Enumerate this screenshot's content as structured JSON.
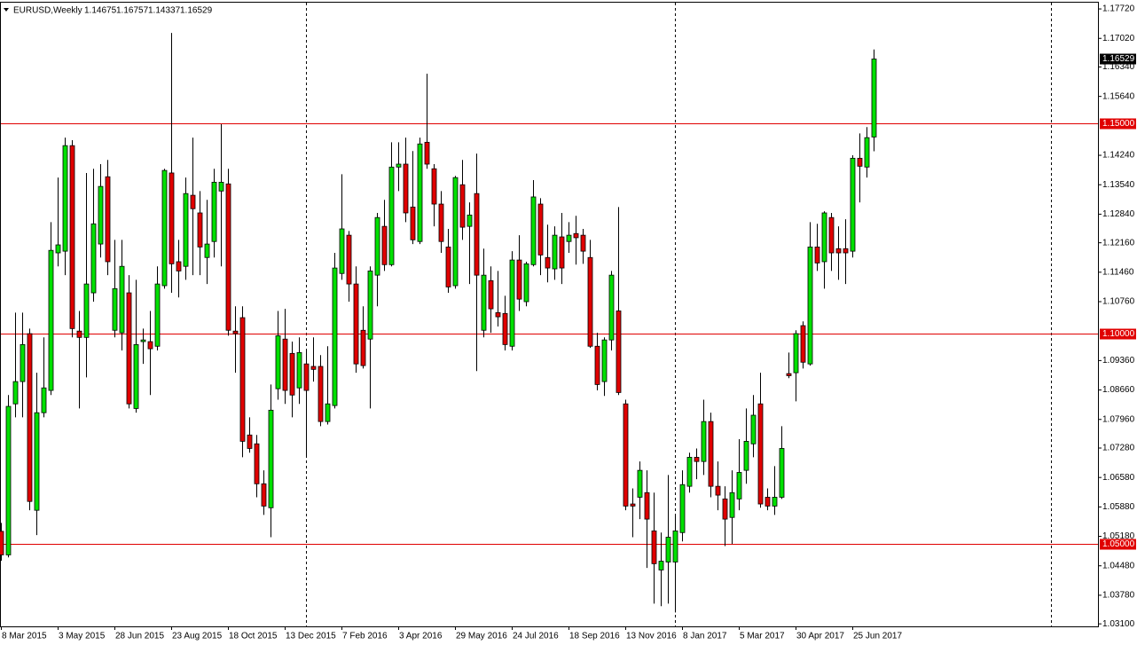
{
  "chart_data": {
    "type": "candlestick",
    "symbol": "EURUSD,Weekly",
    "up_color": "#00e000",
    "down_color": "#e00000",
    "wick_color": "#000000",
    "categories": [
      "8 Mar 2015",
      null,
      null,
      null,
      null,
      null,
      null,
      null,
      "3 May 2015",
      null,
      null,
      null,
      null,
      null,
      null,
      null,
      "28 Jun 2015",
      null,
      null,
      null,
      null,
      null,
      null,
      null,
      "23 Aug 2015",
      null,
      null,
      null,
      null,
      null,
      null,
      null,
      "18 Oct 2015",
      null,
      null,
      null,
      null,
      null,
      null,
      null,
      "13 Dec 2015",
      null,
      null,
      null,
      null,
      null,
      null,
      null,
      "7 Feb 2016",
      null,
      null,
      null,
      null,
      null,
      null,
      null,
      "3 Apr 2016",
      null,
      null,
      null,
      null,
      null,
      null,
      null,
      "29 May 2016",
      null,
      null,
      null,
      null,
      null,
      null,
      null,
      "24 Jul 2016",
      null,
      null,
      null,
      null,
      null,
      null,
      null,
      "18 Sep 2016",
      null,
      null,
      null,
      null,
      null,
      null,
      null,
      "13 Nov 2016",
      null,
      null,
      null,
      null,
      null,
      null,
      null,
      "8 Jan 2017",
      null,
      null,
      null,
      null,
      null,
      null,
      null,
      "5 Mar 2017",
      null,
      null,
      null,
      null,
      null,
      null,
      null,
      "30 Apr 2017",
      null,
      null,
      null,
      null,
      null,
      null,
      null,
      "25 Jun 2017",
      null,
      null,
      null
    ],
    "open": [
      1.053,
      1.0474,
      1.0833,
      1.0886,
      1.1,
      1.058,
      1.0812,
      1.0865,
      1.1192,
      1.1196,
      1.1447,
      1.1006,
      1.0991,
      1.1097,
      1.1213,
      1.1373,
      1.1008,
      1.1002,
      1.1097,
      1.0822,
      1.0981,
      1.0981,
      1.097,
      1.1114,
      1.1382,
      1.1171,
      1.116,
      1.1329,
      1.1287,
      1.1181,
      1.1219,
      1.1339,
      1.1356,
      1.1006,
      1.1038,
      1.0759,
      1.0738,
      1.0643,
      1.0586,
      1.0869,
      1.0987,
      1.0953,
      1.0871,
      1.0928,
      1.0922,
      1.0922,
      1.0791,
      1.0829,
      1.1143,
      1.1234,
      1.1118,
      1.1008,
      1.0987,
      1.1139,
      1.1255,
      1.1164,
      1.1396,
      1.1403,
      1.1301,
      1.1219,
      1.1455,
      1.1392,
      1.1308,
      1.1206,
      1.1114,
      1.1354,
      1.1255,
      1.1333,
      1.1008,
      1.1126,
      1.105,
      1.1048,
      1.097,
      1.1175,
      1.1076,
      1.1164,
      1.1308,
      1.1181,
      1.1154,
      1.123,
      1.1219,
      1.1238,
      1.1234,
      1.1181,
      1.097,
      1.0886,
      1.0985,
      1.1054,
      1.0833,
      1.0595,
      1.0611,
      1.0622,
      1.0531,
      1.0438,
      1.0457,
      1.0457,
      1.0527,
      1.0637,
      1.0706,
      1.0696,
      1.0791,
      1.0637,
      1.0607,
      1.0563,
      1.0607,
      1.0675,
      1.0738,
      1.0833,
      1.0611,
      1.059,
      1.0611,
      1.0905,
      1.0907,
      1.1019,
      1.0928,
      1.1206,
      1.1171,
      1.1276,
      1.1202,
      1.1202,
      1.1196,
      1.1417,
      1.1396,
      1.14675
    ],
    "high": [
      1.055,
      1.0854,
      1.105,
      1.105,
      1.1012,
      1.0907,
      1.0991,
      1.1265,
      1.1371,
      1.1466,
      1.146,
      1.1054,
      1.1382,
      1.1392,
      1.1403,
      1.1413,
      1.1223,
      1.1223,
      1.1139,
      1.1128,
      1.1012,
      1.1054,
      1.116,
      1.1392,
      1.1715,
      1.1223,
      1.1371,
      1.1466,
      1.1339,
      1.1318,
      1.1392,
      1.1498,
      1.1392,
      1.1065,
      1.1065,
      1.0801,
      1.0759,
      1.0675,
      1.0879,
      1.1054,
      1.1059,
      1.0981,
      1.0991,
      1.096,
      1.0991,
      1.0949,
      1.097,
      1.1192,
      1.1379,
      1.1244,
      1.116,
      1.1065,
      1.116,
      1.1287,
      1.1318,
      1.1455,
      1.1455,
      1.1466,
      1.1434,
      1.1466,
      1.1618,
      1.1403,
      1.1339,
      1.1249,
      1.1375,
      1.1413,
      1.1312,
      1.1428,
      1.1202,
      1.116,
      1.1149,
      1.109,
      1.1196,
      1.1234,
      1.1171,
      1.1365,
      1.1322,
      1.1259,
      1.1255,
      1.1287,
      1.1265,
      1.128,
      1.1249,
      1.1223,
      1.1002,
      1.0991,
      1.1149,
      1.1301,
      1.0843,
      1.0632,
      1.0696,
      1.0675,
      1.0622,
      1.0527,
      1.0664,
      1.0569,
      1.0675,
      1.0717,
      1.0727,
      1.0843,
      1.0812,
      1.0696,
      1.0637,
      1.0675,
      1.0749,
      1.0822,
      1.0854,
      1.0907,
      1.0632,
      1.0685,
      1.078,
      1.0955,
      1.1008,
      1.1029,
      1.1265,
      1.1261,
      1.1291,
      1.1287,
      1.1255,
      1.1272,
      1.1424,
      1.1476,
      1.1491,
      1.16757
    ],
    "low": [
      1.046,
      1.0468,
      1.0801,
      1.0801,
      1.058,
      1.0521,
      1.0801,
      1.0854,
      1.116,
      1.1139,
      1.0991,
      1.0822,
      1.0896,
      1.1076,
      1.1181,
      1.1139,
      1.0991,
      1.096,
      1.0822,
      1.0812,
      1.0928,
      1.0854,
      1.096,
      1.1107,
      1.1097,
      1.1086,
      1.1128,
      1.1139,
      1.1139,
      1.1118,
      1.1181,
      1.116,
      1.0995,
      1.0907,
      1.0706,
      1.0717,
      1.0611,
      1.0569,
      1.0516,
      1.0843,
      1.0833,
      1.0801,
      1.0833,
      1.0706,
      1.0886,
      1.078,
      1.0784,
      1.0822,
      1.1128,
      1.1076,
      1.0907,
      1.0917,
      1.0822,
      1.1065,
      1.1149,
      1.116,
      1.1339,
      1.1265,
      1.1213,
      1.1213,
      1.1392,
      1.1255,
      1.1192,
      1.1097,
      1.1107,
      1.1223,
      1.1118,
      1.0911,
      1.0991,
      1.1002,
      1.1017,
      1.096,
      1.096,
      1.1054,
      1.1065,
      1.116,
      1.1139,
      1.1122,
      1.1128,
      1.1118,
      1.1192,
      1.1164,
      1.1166,
      1.0966,
      1.0865,
      1.0852,
      1.096,
      1.0854,
      1.058,
      1.0516,
      1.0559,
      1.0443,
      1.0358,
      1.0352,
      1.0358,
      1.0337,
      1.0506,
      1.0622,
      1.0654,
      1.0664,
      1.0611,
      1.058,
      1.0495,
      1.05,
      1.058,
      1.0643,
      1.0706,
      1.0586,
      1.058,
      1.0569,
      1.0607,
      1.0894,
      1.0839,
      1.0917,
      1.0924,
      1.1149,
      1.1107,
      1.1149,
      1.1128,
      1.1118,
      1.1181,
      1.1312,
      1.1371,
      1.14337
    ],
    "close": [
      1.0474,
      1.0827,
      1.0886,
      1.0974,
      1.0601,
      1.0812,
      1.0871,
      1.1198,
      1.1211,
      1.1447,
      1.1012,
      1.0991,
      1.1118,
      1.1261,
      1.135,
      1.1171,
      1.1107,
      1.116,
      1.0833,
      1.0974,
      1.0985,
      1.0964,
      1.1118,
      1.1388,
      1.1166,
      1.1149,
      1.1333,
      1.1297,
      1.1206,
      1.1213,
      1.136,
      1.136,
      1.1008,
      1.1,
      1.0744,
      1.0727,
      1.0643,
      1.059,
      1.0818,
      1.0995,
      1.0865,
      1.0854,
      1.0955,
      1.0865,
      1.0915,
      1.0791,
      1.0833,
      1.1156,
      1.1249,
      1.1118,
      1.0928,
      1.0924,
      1.1149,
      1.1276,
      1.1164,
      1.1396,
      1.1403,
      1.1287,
      1.1223,
      1.1451,
      1.1403,
      1.1308,
      1.1219,
      1.1111,
      1.1371,
      1.1253,
      1.1282,
      1.1139,
      1.1139,
      1.1059,
      1.104,
      1.0974,
      1.1175,
      1.1082,
      1.1166,
      1.1325,
      1.1187,
      1.1156,
      1.1234,
      1.1156,
      1.1234,
      1.1228,
      1.1196,
      1.097,
      1.0879,
      1.0985,
      1.1139,
      1.086,
      1.059,
      1.059,
      1.0675,
      1.0559,
      1.0453,
      1.0459,
      1.0516,
      1.0531,
      1.0641,
      1.0706,
      1.0696,
      1.0791,
      1.0637,
      1.0616,
      1.0559,
      1.0622,
      1.067,
      1.0744,
      1.0806,
      1.0595,
      1.059,
      1.0611,
      1.0727,
      1.09,
      1.1,
      1.0932,
      1.1206,
      1.1168,
      1.1287,
      1.1192,
      1.1192,
      1.1192,
      1.1417,
      1.1398,
      1.1466,
      1.16529
    ],
    "ylim": [
      1.0304,
      1.1789
    ],
    "yticks": [
      {
        "value": 1.1772,
        "label": "1.17720"
      },
      {
        "value": 1.1702,
        "label": "1.17020"
      },
      {
        "value": 1.1634,
        "label": "1.16340"
      },
      {
        "value": 1.1564,
        "label": "1.15640"
      },
      {
        "value": 1.1424,
        "label": "1.14240"
      },
      {
        "value": 1.1354,
        "label": "1.13540"
      },
      {
        "value": 1.1284,
        "label": "1.12840"
      },
      {
        "value": 1.1216,
        "label": "1.12160"
      },
      {
        "value": 1.1146,
        "label": "1.11460"
      },
      {
        "value": 1.1076,
        "label": "1.10760"
      },
      {
        "value": 1.0936,
        "label": "1.09360"
      },
      {
        "value": 1.0866,
        "label": "1.08660"
      },
      {
        "value": 1.0796,
        "label": "1.07960"
      },
      {
        "value": 1.0728,
        "label": "1.07280"
      },
      {
        "value": 1.0658,
        "label": "1.06580"
      },
      {
        "value": 1.0588,
        "label": "1.05880"
      },
      {
        "value": 1.0518,
        "label": "1.05180"
      },
      {
        "value": 1.0448,
        "label": "1.04480"
      },
      {
        "value": 1.0378,
        "label": "1.03780"
      },
      {
        "value": 1.031,
        "label": "1.03100"
      }
    ],
    "hlines": [
      {
        "value": 1.15,
        "label": "1.15000"
      },
      {
        "value": 1.1,
        "label": "1.10000"
      },
      {
        "value": 1.05,
        "label": "1.05000"
      }
    ],
    "hline_color": "#e00000"
  }
}
